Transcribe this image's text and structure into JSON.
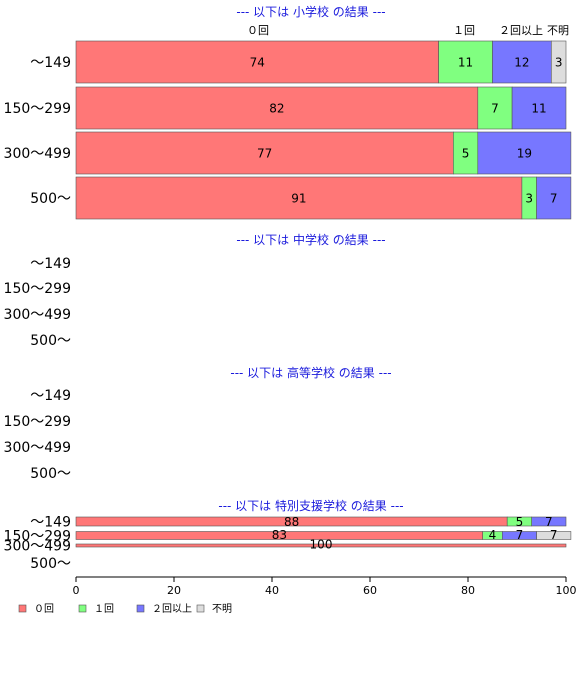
{
  "chart_data": {
    "type": "bar",
    "orientation": "horizontal",
    "stacked": true,
    "xlim": [
      0,
      100
    ],
    "xticks": [
      0,
      20,
      40,
      60,
      80,
      100
    ],
    "grid": false,
    "legend_position": "bottom-left",
    "series": [
      {
        "name": "０回",
        "color": "#ff7777"
      },
      {
        "name": "１回",
        "color": "#80ff80"
      },
      {
        "name": "２回以上",
        "color": "#7777ff"
      },
      {
        "name": "不明",
        "color": "#dddddd"
      }
    ],
    "panels": [
      {
        "title": "--- 以下は 小学校 の結果 ---",
        "headers": [
          "０回",
          "１回",
          "２回以上",
          "不明"
        ],
        "categories": [
          "〜149",
          "150〜299",
          "300〜499",
          "500〜"
        ],
        "values": [
          [
            74,
            11,
            12,
            3
          ],
          [
            82,
            7,
            11,
            0
          ],
          [
            77,
            5,
            19,
            0
          ],
          [
            91,
            3,
            7,
            0
          ]
        ],
        "labels": [
          [
            "74",
            "11",
            "12",
            "3"
          ],
          [
            "82",
            "7",
            "11",
            ""
          ],
          [
            "77",
            "5",
            "19",
            ""
          ],
          [
            "91",
            "3",
            "7",
            ""
          ]
        ]
      },
      {
        "title": "--- 以下は 中学校 の結果 ---",
        "categories": [
          "〜149",
          "150〜299",
          "300〜499",
          "500〜"
        ],
        "values": [
          null,
          null,
          null,
          null
        ],
        "labels": [
          null,
          null,
          null,
          null
        ]
      },
      {
        "title": "--- 以下は 高等学校 の結果 ---",
        "categories": [
          "〜149",
          "150〜299",
          "300〜499",
          "500〜"
        ],
        "values": [
          null,
          null,
          null,
          null
        ],
        "labels": [
          null,
          null,
          null,
          null
        ]
      },
      {
        "title": "--- 以下は 特別支援学校 の結果 ---",
        "categories": [
          "〜149",
          "150〜299",
          "300〜499",
          "500〜"
        ],
        "values": [
          [
            88,
            5,
            7,
            0
          ],
          [
            83,
            4,
            7,
            7
          ],
          [
            100,
            0,
            0,
            0
          ],
          null
        ],
        "labels": [
          [
            "88",
            "5",
            "7",
            ""
          ],
          [
            "83",
            "4",
            "7",
            "7"
          ],
          [
            "100",
            "",
            "",
            ""
          ],
          null
        ]
      }
    ]
  }
}
